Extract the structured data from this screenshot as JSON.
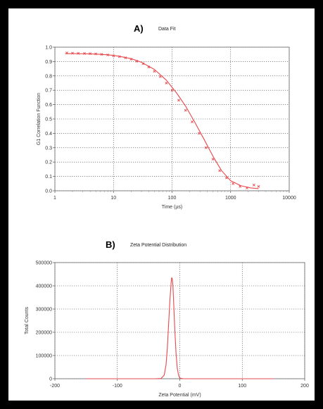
{
  "chart_data": [
    {
      "type": "scatter",
      "panel_label": "A)",
      "title": "Data Fit",
      "xlabel": "Time (µs)",
      "ylabel": "G1 Correlation Function",
      "xscale": "log",
      "xlim": [
        1,
        10000
      ],
      "ylim": [
        0,
        1.0
      ],
      "xticks": [
        1,
        10,
        100,
        1000,
        10000
      ],
      "xtick_labels": [
        "1",
        "10",
        "100",
        "1000",
        "10000"
      ],
      "yticks": [
        0,
        0.1,
        0.2,
        0.3,
        0.4,
        0.5,
        0.6,
        0.7,
        0.8,
        0.9,
        1.0
      ],
      "ytick_labels": [
        "0.0",
        "0.1",
        "0.2",
        "0.3",
        "0.4",
        "0.5",
        "0.6",
        "0.7",
        "0.8",
        "0.9",
        "1.0"
      ],
      "grid": true,
      "color": "#e8474c",
      "series": [
        {
          "kind": "points",
          "x": [
            1.6,
            2.0,
            2.5,
            3.2,
            4.0,
            5.0,
            6.3,
            8.0,
            10,
            12.6,
            16,
            20,
            25,
            32,
            40,
            50,
            63,
            80,
            100,
            130,
            170,
            220,
            290,
            380,
            500,
            650,
            850,
            1100,
            1450,
            1900,
            2500,
            3000
          ],
          "y": [
            0.96,
            0.958,
            0.957,
            0.956,
            0.955,
            0.953,
            0.95,
            0.946,
            0.94,
            0.934,
            0.926,
            0.916,
            0.902,
            0.885,
            0.862,
            0.832,
            0.795,
            0.75,
            0.7,
            0.63,
            0.56,
            0.48,
            0.4,
            0.3,
            0.22,
            0.14,
            0.09,
            0.05,
            0.03,
            0.02,
            0.04,
            0.03
          ]
        },
        {
          "kind": "fit-line",
          "x": [
            1.5,
            2,
            3,
            5,
            8,
            12,
            20,
            30,
            50,
            80,
            120,
            170,
            250,
            350,
            500,
            700,
            1000,
            1500,
            2200,
            3000
          ],
          "y": [
            0.955,
            0.955,
            0.954,
            0.952,
            0.947,
            0.938,
            0.92,
            0.895,
            0.845,
            0.77,
            0.68,
            0.59,
            0.47,
            0.36,
            0.24,
            0.14,
            0.07,
            0.035,
            0.02,
            0.015
          ]
        }
      ]
    },
    {
      "type": "line",
      "panel_label": "B)",
      "title": "Zeta Potential Distribution",
      "xlabel": "Zeta Potential (mV)",
      "ylabel": "Total Counts",
      "xlim": [
        -200,
        200
      ],
      "ylim": [
        0,
        500000
      ],
      "xticks": [
        -200,
        -100,
        0,
        100,
        200
      ],
      "xtick_labels": [
        "-200",
        "-100",
        "0",
        "100",
        "200"
      ],
      "yticks": [
        0,
        100000,
        200000,
        300000,
        400000,
        500000
      ],
      "ytick_labels": [
        "0",
        "100000",
        "200000",
        "300000",
        "400000",
        "500000"
      ],
      "grid": true,
      "color": "#e8474c",
      "series": [
        {
          "x": [
            -150,
            -40,
            -30,
            -25,
            -22,
            -20,
            -18,
            -16,
            -14,
            -13,
            -12,
            -11,
            -10,
            -8,
            -6,
            -4,
            -2,
            0,
            5,
            20,
            150
          ],
          "y": [
            0,
            0,
            1000,
            15000,
            60000,
            130000,
            230000,
            330000,
            410000,
            435000,
            430000,
            400000,
            340000,
            210000,
            110000,
            45000,
            15000,
            3000,
            0,
            0,
            0
          ]
        }
      ]
    }
  ]
}
